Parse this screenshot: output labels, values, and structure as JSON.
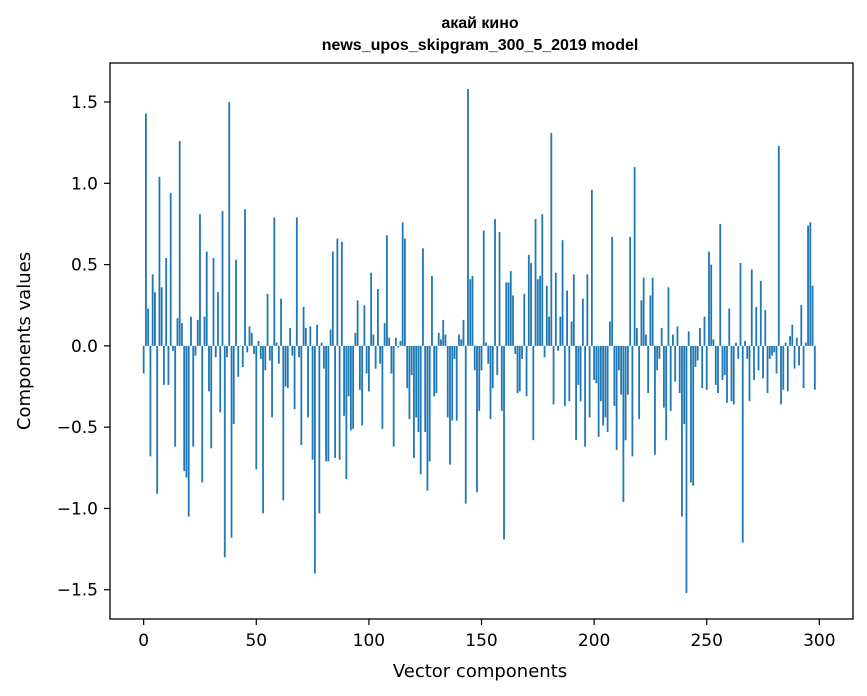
{
  "chart_data": {
    "type": "bar",
    "title": [
      "акай кино",
      "news_upos_skipgram_300_5_2019 model"
    ],
    "xlabel": "Vector components",
    "ylabel": "Components values",
    "xlim": [
      -14.95,
      314.95
    ],
    "ylim": [
      -1.68,
      1.74
    ],
    "xticks": [
      0,
      50,
      100,
      150,
      200,
      250,
      300
    ],
    "xtick_labels": [
      "0",
      "50",
      "100",
      "150",
      "200",
      "250",
      "300"
    ],
    "yticks": [
      -1.5,
      -1.0,
      -0.5,
      0.0,
      0.5,
      1.0,
      1.5
    ],
    "ytick_labels": [
      "−1.5",
      "−1.0",
      "−0.5",
      "0.0",
      "0.5",
      "1.0",
      "1.5"
    ],
    "bar_color": "#1f77b4",
    "grid": false,
    "legend": null,
    "x": "0..299 (component index)",
    "values": [
      -0.17,
      1.43,
      0.23,
      -0.68,
      0.44,
      0.33,
      -0.91,
      1.04,
      0.36,
      -0.24,
      0.54,
      -0.24,
      0.94,
      -0.03,
      -0.62,
      0.17,
      1.26,
      0.14,
      -0.77,
      -0.81,
      -1.05,
      0.18,
      -0.62,
      -0.06,
      0.16,
      0.81,
      -0.84,
      0.18,
      0.58,
      -0.28,
      -0.63,
      0.54,
      -0.07,
      0.33,
      -0.41,
      0.83,
      -1.3,
      -0.07,
      1.5,
      -1.18,
      -0.48,
      0.53,
      -0.19,
      0.0,
      -0.13,
      0.84,
      -0.04,
      0.12,
      0.08,
      -0.05,
      -0.76,
      0.03,
      -0.08,
      -1.03,
      -0.15,
      0.32,
      -0.09,
      -0.44,
      0.79,
      0.02,
      -0.11,
      0.29,
      -0.95,
      -0.25,
      -0.26,
      0.11,
      -0.06,
      -0.39,
      0.79,
      -0.07,
      -0.61,
      0.24,
      0.11,
      -0.44,
      0.12,
      -0.7,
      -1.4,
      0.13,
      -1.03,
      0.02,
      -0.14,
      -0.71,
      -0.71,
      0.1,
      0.58,
      -0.69,
      0.66,
      -0.7,
      0.64,
      -0.43,
      -0.82,
      -0.31,
      -0.52,
      -0.51,
      0.08,
      0.28,
      -0.27,
      -0.49,
      0.25,
      -0.17,
      -0.28,
      0.45,
      0.07,
      -0.14,
      0.35,
      -0.11,
      -0.51,
      0.14,
      0.68,
      0.05,
      -0.17,
      -0.62,
      0.05,
      -0.01,
      0.03,
      0.76,
      0.66,
      -0.26,
      -0.45,
      -0.18,
      -0.69,
      -0.44,
      -0.53,
      -0.79,
      0.6,
      -0.53,
      -0.89,
      -0.71,
      0.43,
      -0.31,
      -0.29,
      0.08,
      0.04,
      0.16,
      0.07,
      -0.44,
      -0.73,
      -0.46,
      -0.08,
      -0.46,
      0.07,
      0.04,
      0.16,
      -0.97,
      1.58,
      0.41,
      0.43,
      -0.15,
      -0.9,
      -0.4,
      -0.15,
      0.71,
      0.02,
      -0.11,
      -0.45,
      -0.26,
      0.78,
      -0.18,
      0.7,
      -0.4,
      -1.19,
      0.39,
      0.39,
      0.46,
      0.31,
      -0.05,
      -0.29,
      -0.28,
      -0.08,
      0.32,
      -0.31,
      0.56,
      0.51,
      -0.58,
      0.78,
      0.41,
      0.43,
      0.81,
      -0.07,
      0.37,
      0.18,
      1.31,
      -0.36,
      0.45,
      -0.03,
      0.18,
      0.65,
      -0.37,
      0.34,
      -0.34,
      0.15,
      0.44,
      -0.58,
      -0.24,
      -0.34,
      0.29,
      -0.62,
      0.44,
      -0.44,
      0.96,
      -0.21,
      -0.23,
      -0.56,
      -0.34,
      -0.49,
      -0.44,
      -0.53,
      0.15,
      0.67,
      -0.37,
      -0.64,
      -0.15,
      -0.3,
      -0.96,
      -0.58,
      -0.3,
      0.67,
      -0.68,
      1.1,
      0.11,
      -0.45,
      0.28,
      0.42,
      0.07,
      -0.29,
      0.31,
      0.42,
      -0.67,
      -0.15,
      -0.08,
      0.11,
      -0.38,
      -0.58,
      0.36,
      -0.4,
      0.07,
      -0.22,
      0.12,
      -0.29,
      -1.05,
      -0.48,
      -1.52,
      0.09,
      -0.84,
      -0.86,
      -0.13,
      -0.09,
      0.11,
      -0.26,
      0.18,
      -0.27,
      0.58,
      0.5,
      0.04,
      -0.24,
      -0.29,
      0.75,
      -0.21,
      -0.18,
      -0.35,
      0.23,
      -0.34,
      -0.36,
      0.02,
      -0.08,
      0.51,
      -1.21,
      0.03,
      -0.08,
      -0.34,
      0.47,
      -0.21,
      0.24,
      -0.15,
      0.4,
      -0.2,
      0.22,
      -0.29,
      -0.08,
      -0.06,
      -0.04,
      -0.17,
      1.23,
      -0.36,
      -0.27,
      0.02,
      -0.28,
      0.06,
      0.13,
      -0.14,
      0.05,
      -0.12,
      0.25,
      -0.26,
      0.02,
      0.74,
      0.76,
      0.37,
      -0.27
    ]
  }
}
